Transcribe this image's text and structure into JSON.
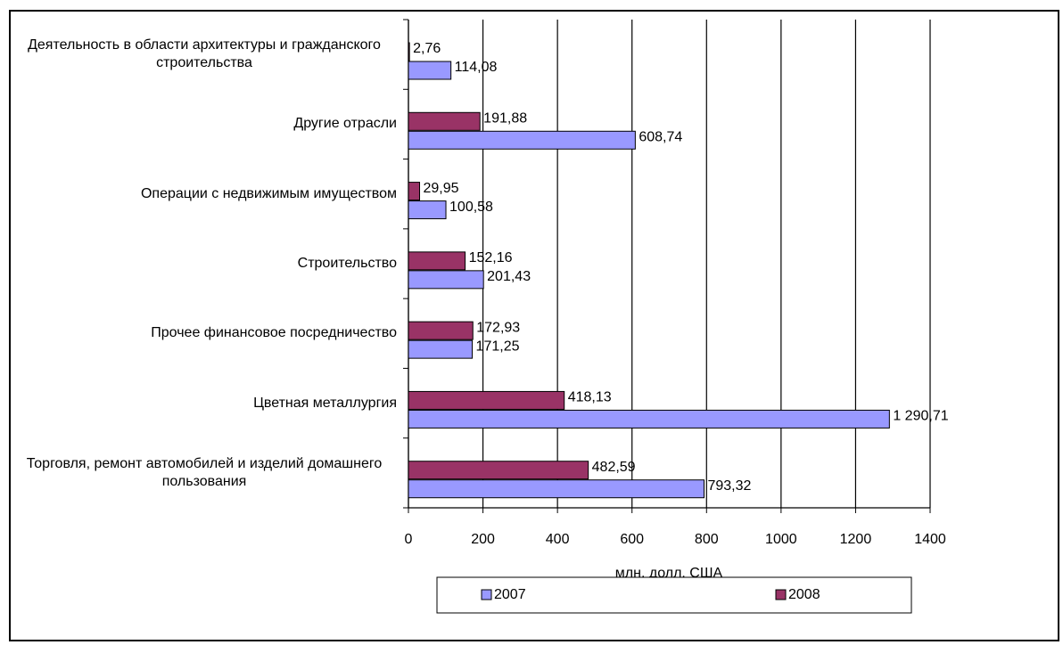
{
  "chart_data": {
    "type": "bar",
    "orientation": "horizontal",
    "categories": [
      "Деятельность в области архитектуры и гражданского строительства",
      "Другие отрасли",
      "Операции с недвижимым имуществом",
      "Строительство",
      "Прочее финансовое посредничество",
      "Цветная металлургия",
      "Торговля, ремонт автомобилей и изделий домашнего пользования"
    ],
    "series": [
      {
        "name": "2007",
        "color": "#9999ff",
        "values": [
          114.08,
          608.74,
          100.58,
          201.43,
          171.25,
          1290.71,
          793.32
        ],
        "value_labels": [
          "114,08",
          "608,74",
          "100,58",
          "201,43",
          "171,25",
          "1 290,71",
          "793,32"
        ]
      },
      {
        "name": "2008",
        "color": "#993366",
        "values": [
          2.76,
          191.88,
          29.95,
          152.16,
          172.93,
          418.13,
          482.59
        ],
        "value_labels": [
          "2,76",
          "191,88",
          "29,95",
          "152,16",
          "172,93",
          "418,13",
          "482,59"
        ]
      }
    ],
    "xlabel": "млн. долл. США",
    "xlim": [
      0,
      1400
    ],
    "xticks": [
      0,
      200,
      400,
      600,
      800,
      1000,
      1200,
      1400
    ],
    "grid": true,
    "legend": "bottom"
  }
}
